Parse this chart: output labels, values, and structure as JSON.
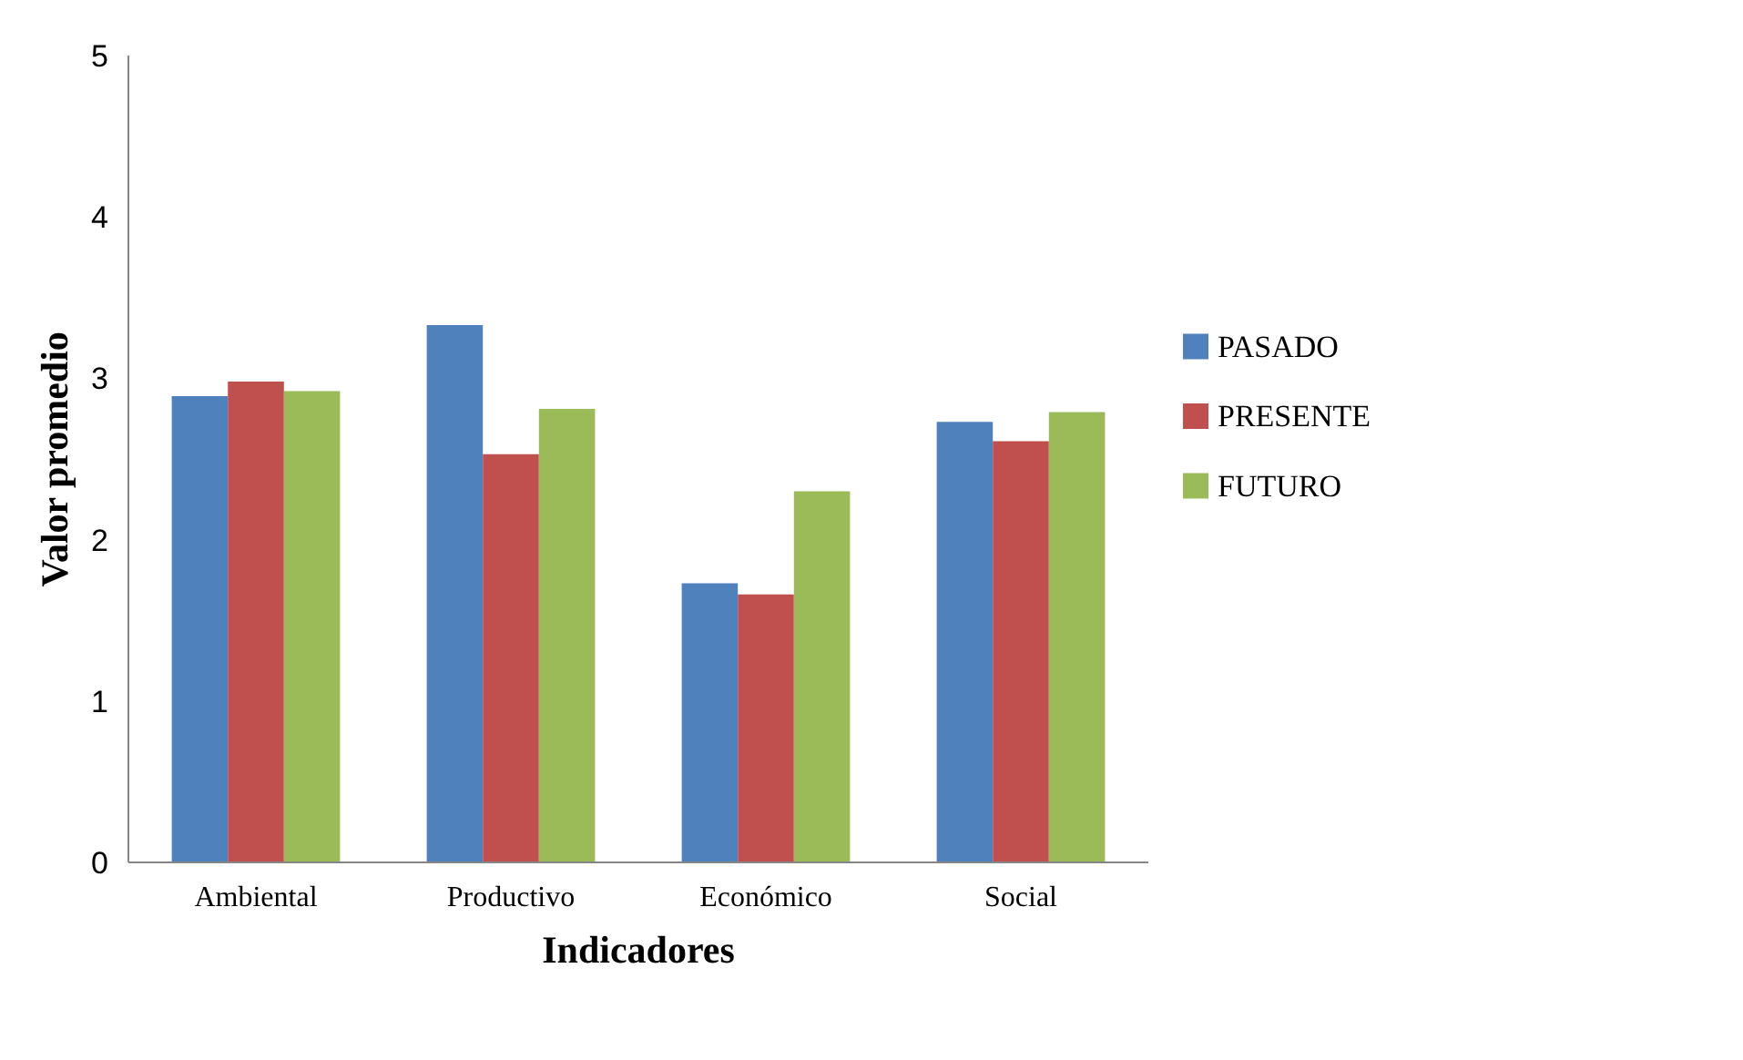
{
  "chart_data": {
    "type": "bar",
    "xlabel": "Indicadores",
    "ylabel": "Valor promedio",
    "categories": [
      "Ambiental",
      "Productivo",
      "Económico",
      "Social"
    ],
    "series": [
      {
        "name": "PASADO",
        "color": "#4f81bd",
        "values": [
          2.89,
          3.33,
          1.73,
          2.73
        ]
      },
      {
        "name": "PRESENTE",
        "color": "#c0504d",
        "values": [
          2.98,
          2.53,
          1.66,
          2.61
        ]
      },
      {
        "name": "FUTURO",
        "color": "#9bbb59",
        "values": [
          2.92,
          2.81,
          2.3,
          2.79
        ]
      }
    ],
    "ylim": [
      0,
      5
    ],
    "yticks": [
      0,
      1,
      2,
      3,
      4,
      5
    ],
    "grid": false,
    "legend": "right"
  }
}
